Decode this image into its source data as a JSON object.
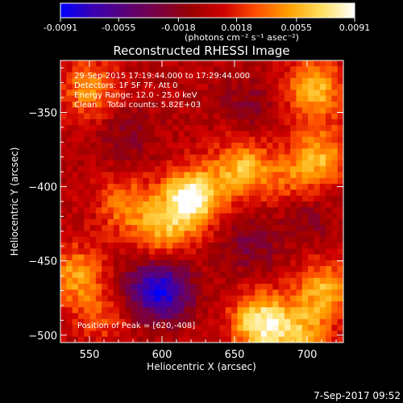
{
  "chart_data": {
    "type": "heatmap",
    "title": "Reconstructed RHESSI Image",
    "xlabel": "Heliocentric X (arcsec)",
    "ylabel": "Heliocentric Y (arcsec)",
    "xlim": [
      530,
      725
    ],
    "ylim": [
      -505,
      -315
    ],
    "xticks": [
      550,
      600,
      650,
      700
    ],
    "yticks": [
      -350,
      -400,
      -450,
      -500
    ],
    "grid": false,
    "colorbar": {
      "range": [
        -0.0091,
        0.0091
      ],
      "tick_values": [
        -0.0091,
        -0.0055,
        -0.0018,
        0.0018,
        0.0055,
        0.0091
      ],
      "tick_labels": [
        "-0.0091",
        "-0.0055",
        "-0.0018",
        "0.0018",
        "0.0055",
        "0.0091"
      ],
      "units_label": "(photons cm⁻² s⁻¹ asec⁻²)",
      "colormap": [
        "#0000ff",
        "#3a00b0",
        "#5a0078",
        "#7a0040",
        "#9a0000",
        "#d00000",
        "#ff5000",
        "#ffa000",
        "#ffe060",
        "#ffffff"
      ]
    },
    "annotations": [
      "29-Sep-2015 17:19:44.000 to 17:29:44.000",
      "Detectors: 1F 5F 7F, Att 0",
      "Energy Range: 12.0 - 25.0 keV",
      "Clean    Total counts: 5.82E+03"
    ],
    "peak_label": "Position of Peak = [620,-408]",
    "peak": {
      "x": 620,
      "y": -408
    },
    "sources": [
      {
        "x": 620,
        "y": -408,
        "amplitude": 0.0091
      },
      {
        "x": 655,
        "y": -388,
        "amplitude": 0.006
      },
      {
        "x": 600,
        "y": -430,
        "amplitude": 0.0045
      },
      {
        "x": 575,
        "y": -412,
        "amplitude": 0.004
      },
      {
        "x": 550,
        "y": -335,
        "amplitude": 0.0045
      },
      {
        "x": 540,
        "y": -460,
        "amplitude": 0.005
      },
      {
        "x": 560,
        "y": -485,
        "amplitude": 0.003
      },
      {
        "x": 668,
        "y": -492,
        "amplitude": 0.008
      },
      {
        "x": 712,
        "y": -470,
        "amplitude": 0.0055
      },
      {
        "x": 705,
        "y": -335,
        "amplitude": 0.006
      },
      {
        "x": 710,
        "y": -380,
        "amplitude": 0.005
      },
      {
        "x": 690,
        "y": -395,
        "amplitude": 0.003
      },
      {
        "x": 695,
        "y": -500,
        "amplitude": 0.005
      },
      {
        "x": 600,
        "y": -470,
        "amplitude": -0.008
      },
      {
        "x": 660,
        "y": -440,
        "amplitude": -0.0025
      },
      {
        "x": 575,
        "y": -365,
        "amplitude": -0.002
      },
      {
        "x": 660,
        "y": -345,
        "amplitude": -0.002
      },
      {
        "x": 700,
        "y": -420,
        "amplitude": -0.002
      },
      {
        "x": 580,
        "y": -470,
        "amplitude": -0.002
      }
    ]
  },
  "footer": {
    "date": "7-Sep-2017 09:52"
  }
}
